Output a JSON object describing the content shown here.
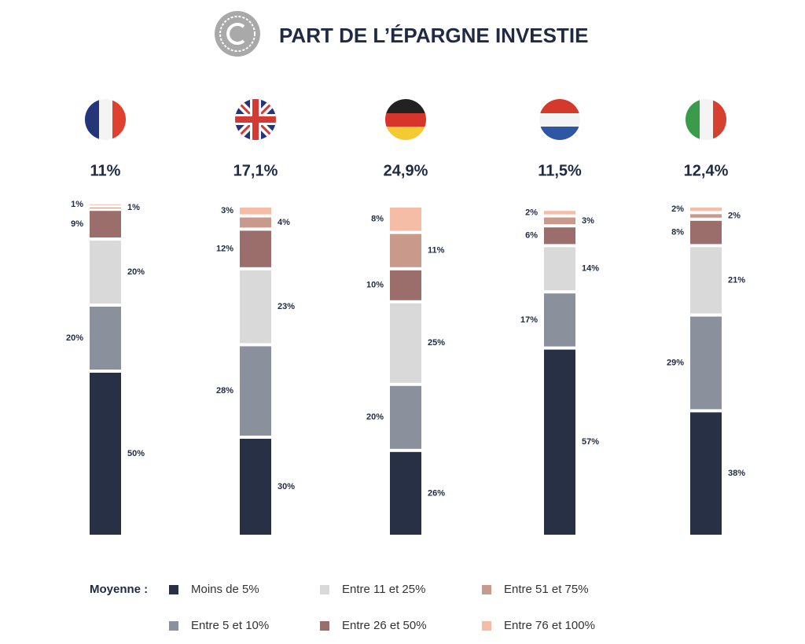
{
  "chart_data": {
    "type": "stacked_bar",
    "title": "PART DE L’ÉPARGNE INVESTIE",
    "categories": [
      null,
      null,
      null,
      null,
      null
    ],
    "headline_values": [
      11,
      17.1,
      24.9,
      11.5,
      12.4
    ],
    "headline_value_labels": [
      "11%",
      "17,1%",
      "24,9%",
      "11,5%",
      "12,4%"
    ],
    "legend_title": "Moyenne :",
    "series": [
      {
        "name": "Moins de 5%",
        "color": "#283045",
        "values": [
          50,
          30,
          26,
          57,
          38
        ],
        "value_labels": [
          "50%",
          "30%",
          "26%",
          "57%",
          "38%"
        ]
      },
      {
        "name": "Entre 5 et 10%",
        "color": "#8a909c",
        "values": [
          20,
          28,
          20,
          17,
          29
        ],
        "value_labels": [
          "20%",
          "28%",
          "20%",
          "17%",
          "29%"
        ]
      },
      {
        "name": "Entre 11 et 25%",
        "color": "#d9d9d9",
        "values": [
          20,
          23,
          25,
          14,
          21
        ],
        "value_labels": [
          "20%",
          "23%",
          "25%",
          "14%",
          "21%"
        ]
      },
      {
        "name": "Entre 26 et 50%",
        "color": "#9b6e6b",
        "values": [
          9,
          12,
          10,
          6,
          8
        ],
        "value_labels": [
          "9%",
          "12%",
          "10%",
          "6%",
          "8%"
        ]
      },
      {
        "name": "Entre 51 et 75%",
        "color": "#c9998b",
        "values": [
          1,
          4,
          11,
          3,
          2
        ],
        "value_labels": [
          "1%",
          "4%",
          "11%",
          "3%",
          "2%"
        ]
      },
      {
        "name": "Entre 76 et 100%",
        "color": "#f5bca6",
        "values": [
          1,
          3,
          8,
          2,
          2
        ],
        "value_labels": [
          "1%",
          "3%",
          "8%",
          "2%",
          "2%"
        ]
      }
    ]
  }
}
